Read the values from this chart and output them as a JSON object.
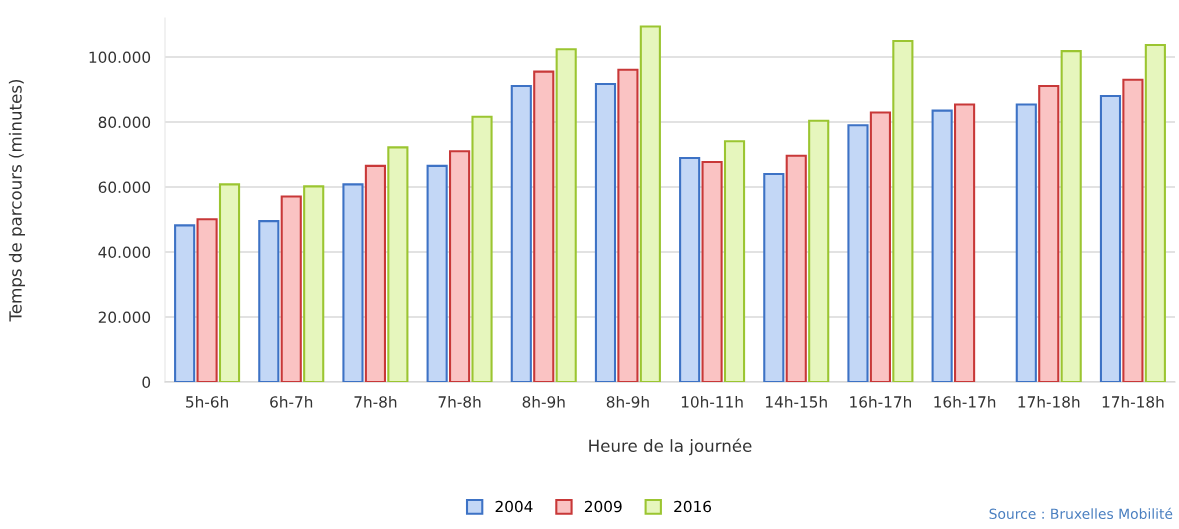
{
  "chart_data": {
    "type": "bar",
    "xlabel": "Heure de la journée",
    "ylabel": "Temps de parcours (minutes)",
    "categories": [
      "5h-6h",
      "6h-7h",
      "7h-8h",
      "7h-8h",
      "8h-9h",
      "8h-9h",
      "10h-11h",
      "14h-15h",
      "16h-17h",
      "16h-17h",
      "17h-18h",
      "17h-18h"
    ],
    "series": [
      {
        "name": "2004",
        "color": "#c3d7f6",
        "values": [
          48200,
          49500,
          60800,
          66500,
          91100,
          91700,
          68900,
          64000,
          79000,
          83500,
          85400,
          88000
        ]
      },
      {
        "name": "2009",
        "color": "#fac3c3",
        "values": [
          50100,
          57100,
          66500,
          71000,
          95500,
          96100,
          67700,
          69600,
          82900,
          85400,
          91100,
          93000
        ]
      },
      {
        "name": "2016",
        "color": "#e6f6bd",
        "values": [
          60800,
          60200,
          72200,
          81600,
          102400,
          109400,
          74100,
          80400,
          104900,
          null,
          101800,
          103700
        ]
      }
    ],
    "ylim": [
      0,
      112000
    ],
    "yticks": [
      0,
      {
        "value": 20000,
        "label": "20.000"
      },
      {
        "value": 40000,
        "label": "40.000"
      },
      {
        "value": 60000,
        "label": "60.000"
      },
      {
        "value": 80000,
        "label": "80.000"
      },
      {
        "value": 100000,
        "label": "100.000"
      }
    ],
    "grid": "y",
    "legend": "bottom",
    "annotations": [
      "Source : Bruxelles Mobilité"
    ]
  }
}
